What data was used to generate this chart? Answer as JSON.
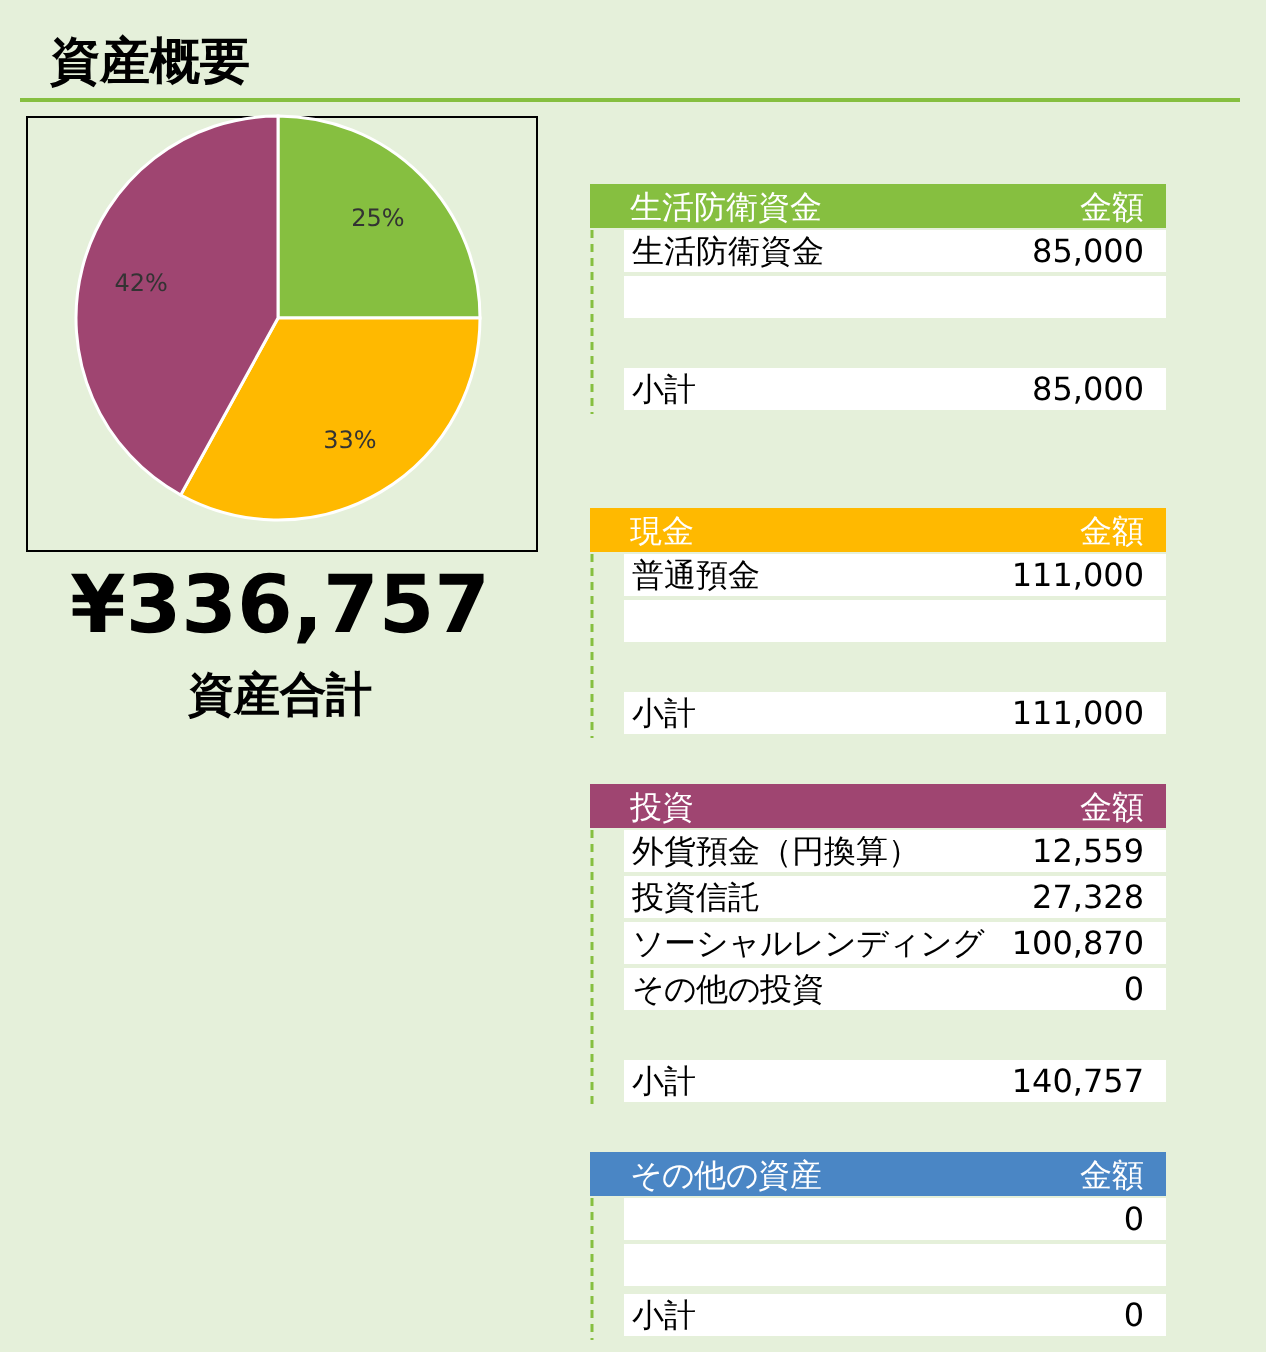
{
  "chart_data": [
    {
      "type": "pie",
      "title": "資産概要",
      "categories": [
        null,
        null,
        null
      ],
      "values": [
        25,
        33,
        42
      ],
      "colors": [
        "#86bf40",
        "#ffb900",
        "#9f4571"
      ],
      "value_labels": [
        "25%",
        "33%",
        "42%"
      ],
      "annotations": [
        "¥336,757",
        "資産合計"
      ]
    },
    {
      "type": "other",
      "title": "生活防衛資金",
      "color": "#86bf40",
      "annotations": [
        "金額"
      ],
      "categories": [
        "生活防衛資金",
        null,
        "小計"
      ],
      "value_labels": [
        "85,000",
        null,
        "85,000"
      ]
    },
    {
      "type": "other",
      "title": "現金",
      "color": "#ffb900",
      "annotations": [
        "金額"
      ],
      "categories": [
        "普通預金",
        null,
        "小計"
      ],
      "value_labels": [
        "111,000",
        null,
        "111,000"
      ]
    },
    {
      "type": "other",
      "title": "投資",
      "color": "#9f4571",
      "annotations": [
        "金額"
      ],
      "categories": [
        "外貨預金（円換算）",
        "投資信託",
        "ソーシャルレンディング",
        "その他の投資",
        "小計"
      ],
      "value_labels": [
        "12,559",
        "27,328",
        "100,870",
        "0",
        "140,757"
      ]
    },
    {
      "type": "other",
      "title": "その他の資産",
      "color": "#4a86c5",
      "annotations": [
        "金額"
      ],
      "categories": [
        null,
        null,
        "小計"
      ],
      "value_labels": [
        "0",
        null,
        "0"
      ]
    }
  ]
}
